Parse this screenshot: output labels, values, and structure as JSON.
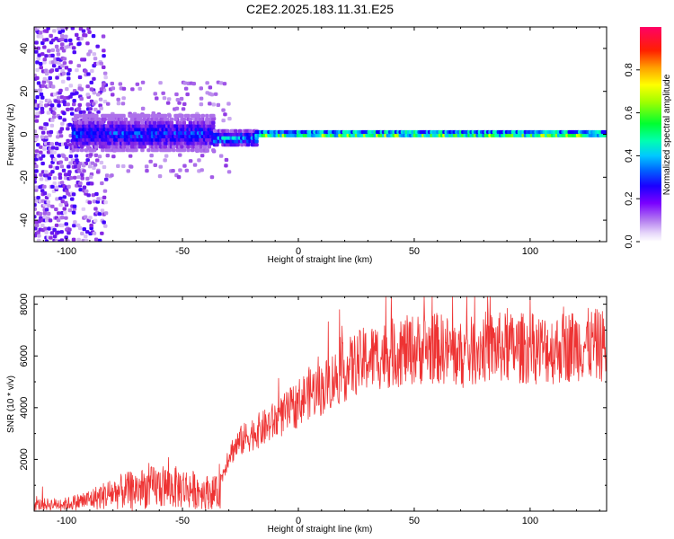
{
  "title": "C2E2.2025.183.11.31.E25",
  "chart_data": [
    {
      "type": "heatmap",
      "xlabel": "Height of straight line (km)",
      "ylabel": "Frequency (Hz)",
      "xlim": [
        -114,
        133
      ],
      "ylim": [
        -50,
        50
      ],
      "x_ticks": [
        -100,
        -50,
        0,
        50,
        100
      ],
      "y_ticks": [
        -40,
        -20,
        0,
        20,
        40
      ],
      "colorbar": {
        "label": "Normalized spectral amplitude",
        "range": [
          0,
          1
        ],
        "ticks": [
          0.0,
          0.2,
          0.4,
          0.6,
          0.8
        ],
        "colors": [
          "#ffffff",
          "#c9a8f0",
          "#8a2be2",
          "#3c00ff",
          "#0000ff",
          "#00b0ff",
          "#00ffd0",
          "#00ff40",
          "#b0ff00",
          "#ffff00",
          "#ff9000",
          "#ff2000",
          "#ff0060"
        ]
      },
      "structure": [
        {
          "x_range": [
            -114,
            -83
          ],
          "freq_range": [
            -50,
            50
          ],
          "amplitude": 0.15
        },
        {
          "x_range": [
            -97,
            -36
          ],
          "freq_center": 0,
          "freq_halfwidth": 5,
          "amplitude": 0.35
        },
        {
          "x_range": [
            -36,
            -18
          ],
          "freq_center": -2,
          "freq_halfwidth": 2.5,
          "amplitude": 0.45
        },
        {
          "x_range": [
            -18,
            133
          ],
          "freq_center": 0,
          "freq_halfwidth": 1.2,
          "amplitude": 0.75
        }
      ]
    },
    {
      "type": "line",
      "xlabel": "Height of straight line (km)",
      "ylabel": "SNR (10 * v/v)",
      "xlim": [
        -114,
        133
      ],
      "ylim": [
        0,
        8300
      ],
      "x_ticks": [
        -100,
        -50,
        0,
        50,
        100
      ],
      "y_ticks": [
        2000,
        4000,
        6000,
        8000
      ],
      "line_color": "#ee3333",
      "series": [
        {
          "x": [
            -114,
            -100,
            -90,
            -80,
            -70,
            -60,
            -50,
            -40,
            -35,
            -30,
            -25,
            -20,
            -15,
            -10,
            -5,
            0,
            5,
            10,
            15,
            20,
            25,
            30,
            40,
            50,
            60,
            65,
            70,
            80,
            90,
            100,
            110,
            120,
            133
          ],
          "values": [
            250,
            280,
            450,
            700,
            850,
            950,
            900,
            750,
            700,
            2200,
            2700,
            3000,
            3200,
            3500,
            3800,
            4200,
            4600,
            4700,
            5100,
            5400,
            5700,
            5900,
            6100,
            6250,
            6300,
            6200,
            6000,
            6350,
            6300,
            6300,
            6250,
            6450,
            6400
          ]
        }
      ]
    }
  ]
}
